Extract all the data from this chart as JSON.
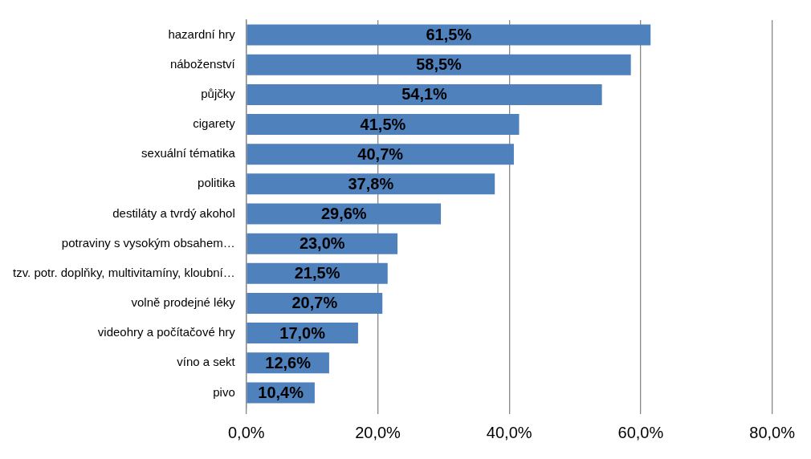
{
  "chart_data": {
    "type": "bar",
    "orientation": "horizontal",
    "categories": [
      "hazardní hry",
      "náboženství",
      "půjčky",
      "cigarety",
      "sexuální tématika",
      "politika",
      "destiláty a tvrdý akohol",
      "potraviny s vysokým obsahem…",
      "tzv. potr. doplňky, multivitamíny, kloubní…",
      "volně prodejné léky",
      "videohry a počítačové hry",
      "víno a sekt",
      "pivo"
    ],
    "values": [
      61.5,
      58.5,
      54.1,
      41.5,
      40.7,
      37.8,
      29.6,
      23.0,
      21.5,
      20.7,
      17.0,
      12.6,
      10.4
    ],
    "value_labels": [
      "61,5%",
      "58,5%",
      "54,1%",
      "41,5%",
      "40,7%",
      "37,8%",
      "29,6%",
      "23,0%",
      "21,5%",
      "20,7%",
      "17,0%",
      "12,6%",
      "10,4%"
    ],
    "color": "#4f81bd",
    "xlim": [
      0,
      80
    ],
    "xticks": [
      {
        "value": 0,
        "label": "0,0%"
      },
      {
        "value": 20,
        "label": "20,0%"
      },
      {
        "value": 40,
        "label": "40,0%"
      },
      {
        "value": 60,
        "label": "60,0%"
      },
      {
        "value": 80,
        "label": "80,0%"
      }
    ],
    "grid": "x",
    "legend": false
  }
}
